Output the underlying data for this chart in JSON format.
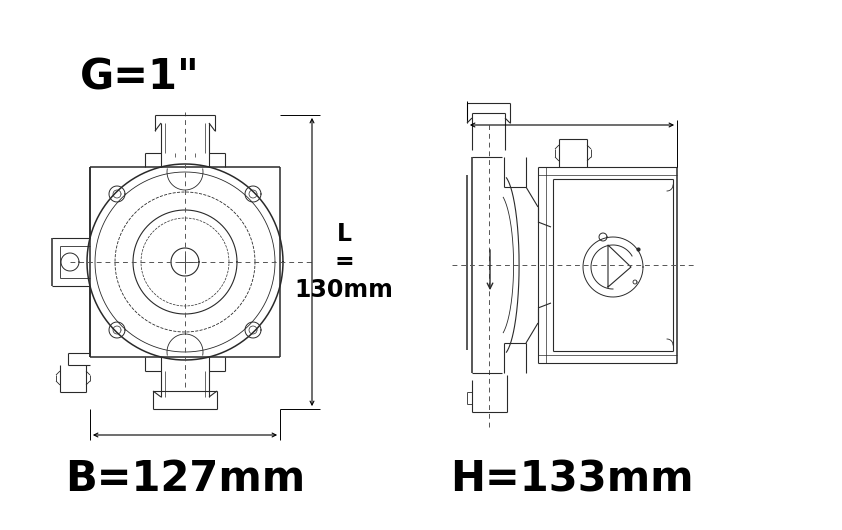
{
  "bg_color": "#ffffff",
  "lc": "#2a2a2a",
  "lc2": "#444444",
  "dim_color": "#000000",
  "fig_width": 8.42,
  "fig_height": 5.3,
  "label_G": "G=1\"",
  "label_B": "B=127mm",
  "label_L": "L=130mm",
  "label_H": "H=133mm",
  "big_fontsize": 30,
  "lw": 0.8,
  "lw2": 1.1
}
